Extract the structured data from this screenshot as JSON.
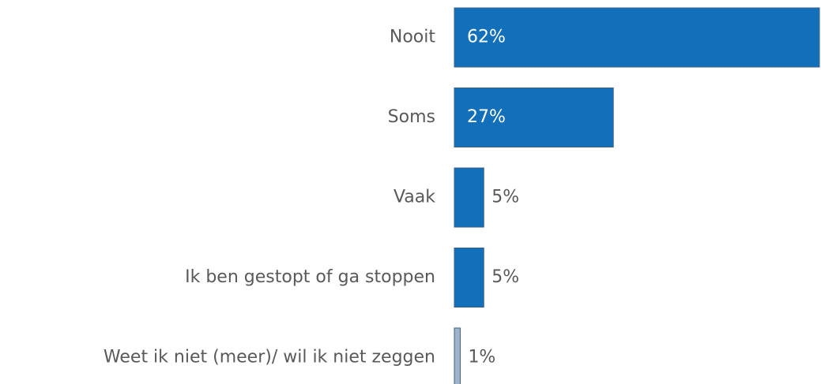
{
  "chart_data": {
    "type": "barh",
    "categories": [
      "Nooit",
      "Soms",
      "Vaak",
      "Ik ben gestopt of ga stoppen",
      "Weet ik niet (meer)/ wil ik niet zeggen"
    ],
    "values": [
      62,
      27,
      5,
      5,
      1
    ],
    "value_labels": [
      "62%",
      "27%",
      "5%",
      "5%",
      "1%"
    ],
    "colors": [
      "#1170b9",
      "#1170b9",
      "#1170b9",
      "#1170b9",
      "#9fb4cc"
    ]
  }
}
